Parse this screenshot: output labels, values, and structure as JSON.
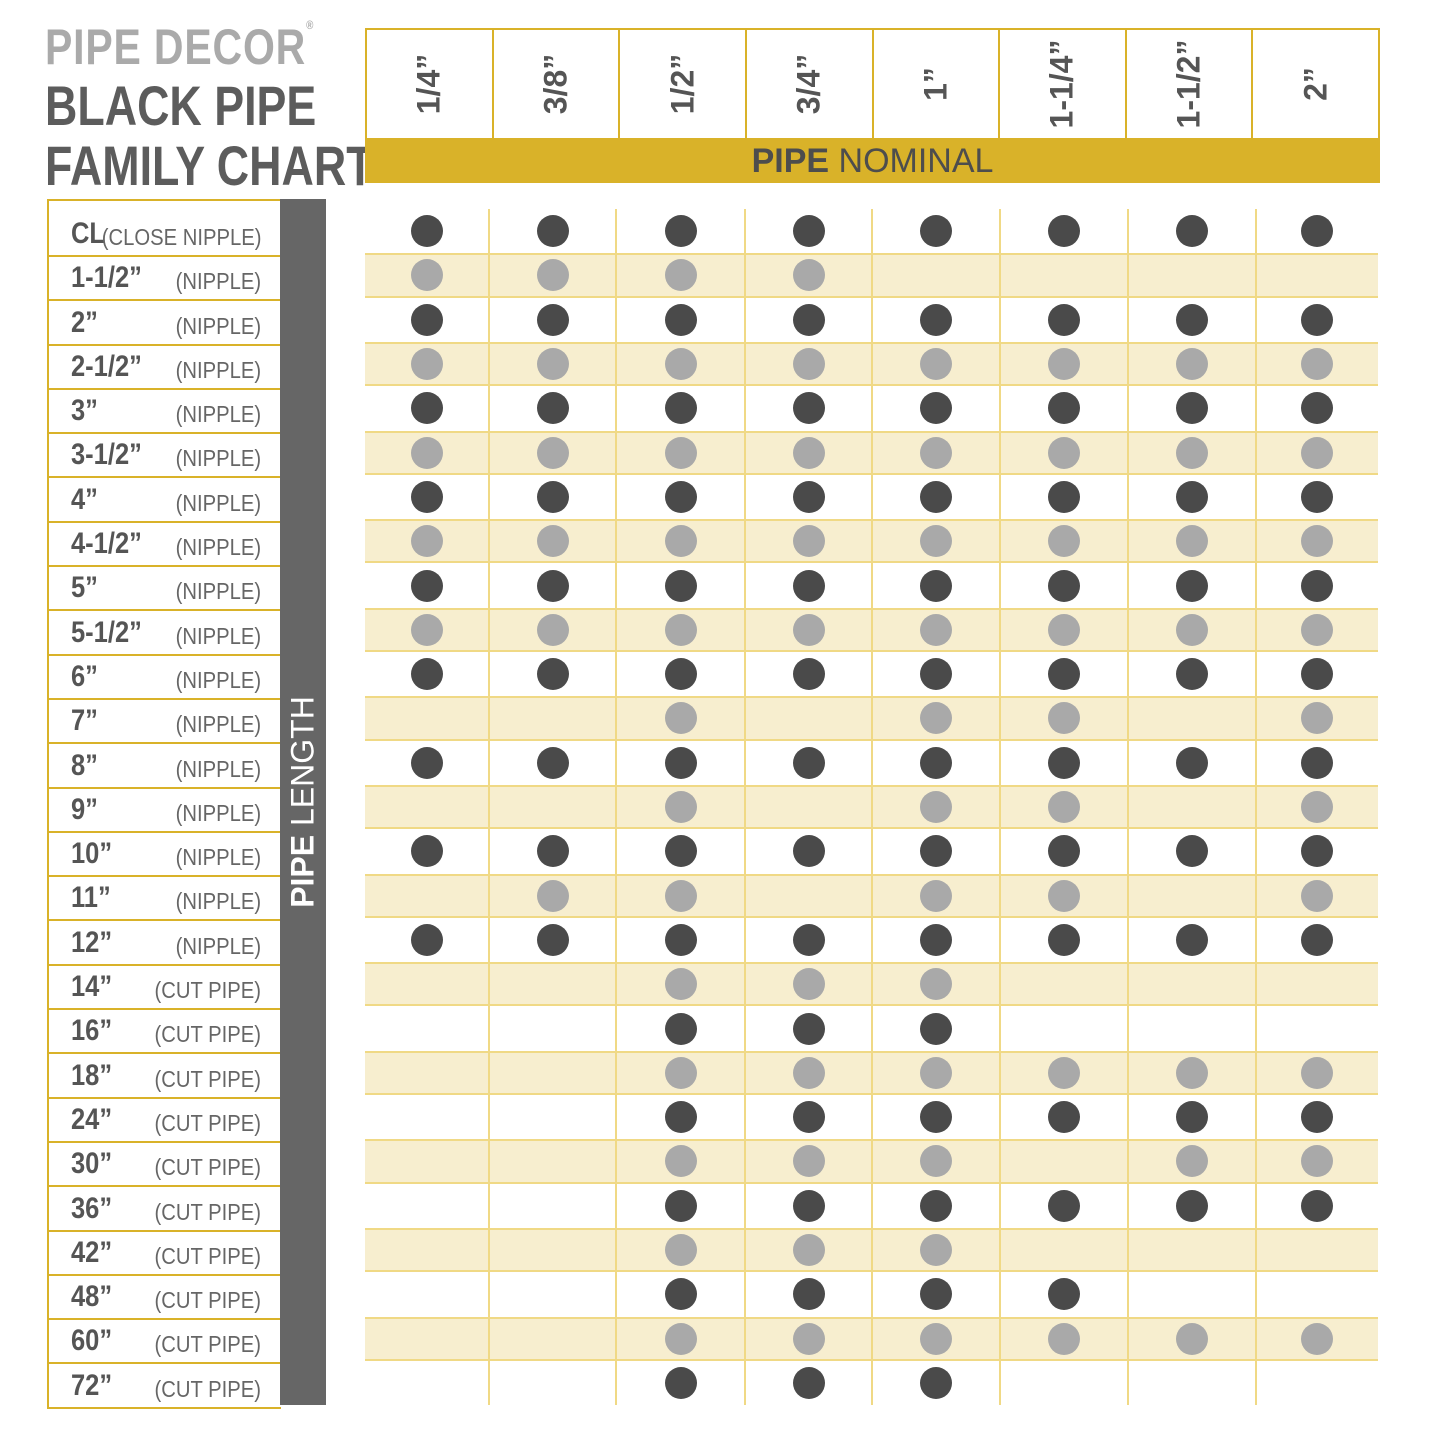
{
  "brand": "PIPE DECOR",
  "brand_mark": "®",
  "title_line1": "BLACK PIPE",
  "title_line2": "FAMILY CHART",
  "colors": {
    "gold": "#d9b229",
    "dark_dot": "#4a4a4a",
    "light_dot": "#a9a9a9",
    "alt_row": "#f7eecf",
    "sidebar": "#666666"
  },
  "chart_data": {
    "type": "table",
    "column_axis_bold": "PIPE",
    "column_axis_rest": " NOMINAL",
    "row_axis_bold": "PIPE",
    "row_axis_rest": " LENGTH",
    "columns": [
      "1/4”",
      "3/8”",
      "1/2”",
      "3/4”",
      "1”",
      "1-1/4”",
      "1-1/2”",
      "2”"
    ],
    "rows": [
      {
        "size": "CL",
        "type": "(CLOSE NIPPLE)",
        "available": [
          1,
          1,
          1,
          1,
          1,
          1,
          1,
          1
        ]
      },
      {
        "size": "1-1/2”",
        "type": "(NIPPLE)",
        "available": [
          1,
          1,
          1,
          1,
          0,
          0,
          0,
          0
        ]
      },
      {
        "size": "2”",
        "type": "(NIPPLE)",
        "available": [
          1,
          1,
          1,
          1,
          1,
          1,
          1,
          1
        ]
      },
      {
        "size": "2-1/2”",
        "type": "(NIPPLE)",
        "available": [
          1,
          1,
          1,
          1,
          1,
          1,
          1,
          1
        ]
      },
      {
        "size": "3”",
        "type": "(NIPPLE)",
        "available": [
          1,
          1,
          1,
          1,
          1,
          1,
          1,
          1
        ]
      },
      {
        "size": "3-1/2”",
        "type": "(NIPPLE)",
        "available": [
          1,
          1,
          1,
          1,
          1,
          1,
          1,
          1
        ]
      },
      {
        "size": "4”",
        "type": "(NIPPLE)",
        "available": [
          1,
          1,
          1,
          1,
          1,
          1,
          1,
          1
        ]
      },
      {
        "size": "4-1/2”",
        "type": "(NIPPLE)",
        "available": [
          1,
          1,
          1,
          1,
          1,
          1,
          1,
          1
        ]
      },
      {
        "size": "5”",
        "type": "(NIPPLE)",
        "available": [
          1,
          1,
          1,
          1,
          1,
          1,
          1,
          1
        ]
      },
      {
        "size": "5-1/2”",
        "type": "(NIPPLE)",
        "available": [
          1,
          1,
          1,
          1,
          1,
          1,
          1,
          1
        ]
      },
      {
        "size": "6”",
        "type": "(NIPPLE)",
        "available": [
          1,
          1,
          1,
          1,
          1,
          1,
          1,
          1
        ]
      },
      {
        "size": "7”",
        "type": "(NIPPLE)",
        "available": [
          0,
          0,
          1,
          0,
          1,
          1,
          0,
          1
        ]
      },
      {
        "size": "8”",
        "type": "(NIPPLE)",
        "available": [
          1,
          1,
          1,
          1,
          1,
          1,
          1,
          1
        ]
      },
      {
        "size": "9”",
        "type": "(NIPPLE)",
        "available": [
          0,
          0,
          1,
          0,
          1,
          1,
          0,
          1
        ]
      },
      {
        "size": "10”",
        "type": "(NIPPLE)",
        "available": [
          1,
          1,
          1,
          1,
          1,
          1,
          1,
          1
        ]
      },
      {
        "size": "11”",
        "type": "(NIPPLE)",
        "available": [
          0,
          1,
          1,
          0,
          1,
          1,
          0,
          1
        ]
      },
      {
        "size": "12”",
        "type": "(NIPPLE)",
        "available": [
          1,
          1,
          1,
          1,
          1,
          1,
          1,
          1
        ]
      },
      {
        "size": "14”",
        "type": "(CUT PIPE)",
        "available": [
          0,
          0,
          1,
          1,
          1,
          0,
          0,
          0
        ]
      },
      {
        "size": "16”",
        "type": "(CUT PIPE)",
        "available": [
          0,
          0,
          1,
          1,
          1,
          0,
          0,
          0
        ]
      },
      {
        "size": "18”",
        "type": "(CUT PIPE)",
        "available": [
          0,
          0,
          1,
          1,
          1,
          1,
          1,
          1
        ]
      },
      {
        "size": "24”",
        "type": "(CUT PIPE)",
        "available": [
          0,
          0,
          1,
          1,
          1,
          1,
          1,
          1
        ]
      },
      {
        "size": "30”",
        "type": "(CUT PIPE)",
        "available": [
          0,
          0,
          1,
          1,
          1,
          0,
          1,
          1
        ]
      },
      {
        "size": "36”",
        "type": "(CUT PIPE)",
        "available": [
          0,
          0,
          1,
          1,
          1,
          1,
          1,
          1
        ]
      },
      {
        "size": "42”",
        "type": "(CUT PIPE)",
        "available": [
          0,
          0,
          1,
          1,
          1,
          0,
          0,
          0
        ]
      },
      {
        "size": "48”",
        "type": "(CUT PIPE)",
        "available": [
          0,
          0,
          1,
          1,
          1,
          1,
          0,
          0
        ]
      },
      {
        "size": "60”",
        "type": "(CUT PIPE)",
        "available": [
          0,
          0,
          1,
          1,
          1,
          1,
          1,
          1
        ]
      },
      {
        "size": "72”",
        "type": "(CUT PIPE)",
        "available": [
          0,
          0,
          1,
          1,
          1,
          0,
          0,
          0
        ]
      }
    ]
  }
}
